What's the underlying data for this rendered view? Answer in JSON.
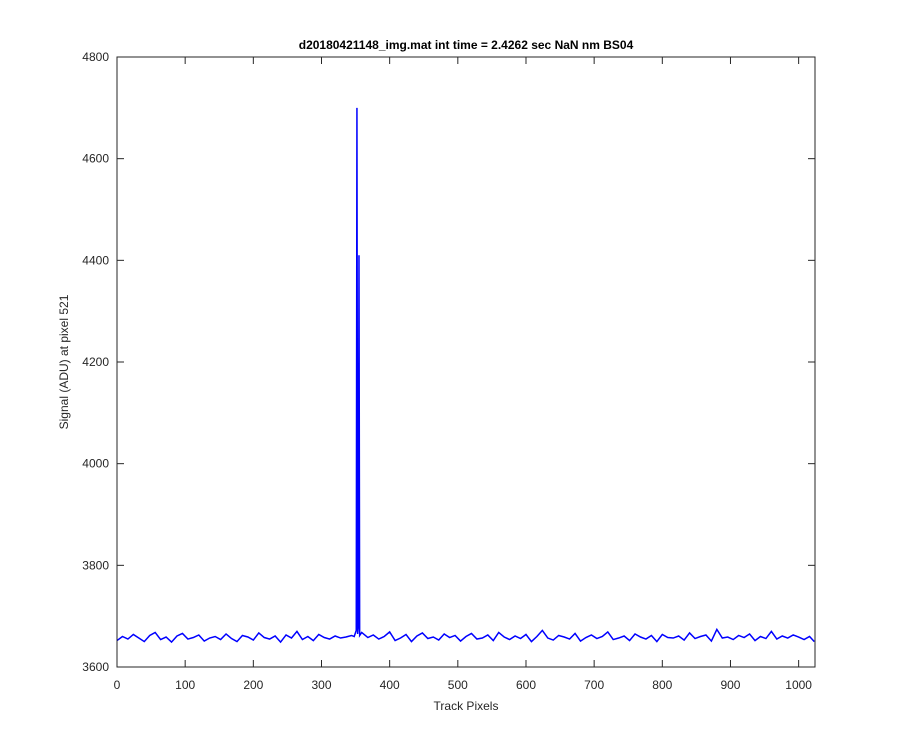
{
  "chart_data": {
    "type": "line",
    "title": "d20180421148_img.mat int time = 2.4262 sec  NaN nm BS04",
    "x_label": "Track Pixels",
    "y_label": "Signal (ADU) at pixel 521",
    "xlim": [
      0,
      1024
    ],
    "ylim": [
      3600,
      4800
    ],
    "xticks": [
      0,
      100,
      200,
      300,
      400,
      500,
      600,
      700,
      800,
      900,
      1000
    ],
    "yticks": [
      3600,
      3800,
      4000,
      4200,
      4400,
      4600,
      4800
    ],
    "grid": false,
    "x": [
      0,
      8,
      16,
      24,
      32,
      40,
      48,
      56,
      64,
      72,
      80,
      88,
      96,
      104,
      112,
      120,
      128,
      136,
      144,
      152,
      160,
      168,
      176,
      184,
      192,
      200,
      208,
      216,
      224,
      232,
      240,
      248,
      256,
      264,
      272,
      280,
      288,
      296,
      304,
      312,
      320,
      328,
      336,
      344,
      348,
      351,
      352,
      353,
      354,
      355,
      356,
      359,
      368,
      376,
      384,
      392,
      400,
      408,
      416,
      424,
      432,
      440,
      448,
      456,
      464,
      472,
      480,
      488,
      496,
      504,
      512,
      520,
      528,
      536,
      544,
      552,
      560,
      568,
      576,
      584,
      592,
      600,
      608,
      616,
      624,
      632,
      640,
      648,
      656,
      664,
      672,
      680,
      688,
      696,
      704,
      712,
      720,
      728,
      736,
      744,
      752,
      760,
      768,
      776,
      784,
      792,
      800,
      808,
      816,
      824,
      832,
      840,
      848,
      856,
      864,
      872,
      880,
      888,
      896,
      904,
      912,
      920,
      928,
      936,
      944,
      952,
      960,
      968,
      976,
      984,
      992,
      1000,
      1008,
      1016,
      1023
    ],
    "series": [
      {
        "color": "#0000ff",
        "values": [
          3652,
          3660,
          3655,
          3664,
          3657,
          3650,
          3662,
          3668,
          3654,
          3659,
          3649,
          3661,
          3666,
          3655,
          3658,
          3663,
          3651,
          3657,
          3660,
          3654,
          3665,
          3656,
          3650,
          3662,
          3659,
          3653,
          3667,
          3658,
          3655,
          3661,
          3649,
          3663,
          3657,
          3670,
          3654,
          3660,
          3652,
          3664,
          3658,
          3655,
          3661,
          3657,
          3659,
          3662,
          3660,
          3672,
          4700,
          3665,
          3680,
          4410,
          3662,
          3668,
          3658,
          3663,
          3655,
          3660,
          3669,
          3652,
          3657,
          3664,
          3650,
          3661,
          3667,
          3656,
          3659,
          3653,
          3665,
          3658,
          3662,
          3651,
          3660,
          3666,
          3655,
          3657,
          3663,
          3652,
          3668,
          3659,
          3654,
          3661,
          3656,
          3664,
          3650,
          3660,
          3672,
          3657,
          3653,
          3662,
          3659,
          3655,
          3666,
          3651,
          3658,
          3663,
          3656,
          3660,
          3669,
          3654,
          3657,
          3661,
          3652,
          3665,
          3659,
          3655,
          3662,
          3650,
          3664,
          3658,
          3657,
          3661,
          3653,
          3667,
          3656,
          3660,
          3663,
          3651,
          3674,
          3657,
          3659,
          3654,
          3662,
          3658,
          3665,
          3652,
          3660,
          3656,
          3670,
          3655,
          3661,
          3657,
          3663,
          3659,
          3654,
          3660,
          3650
        ]
      }
    ]
  }
}
